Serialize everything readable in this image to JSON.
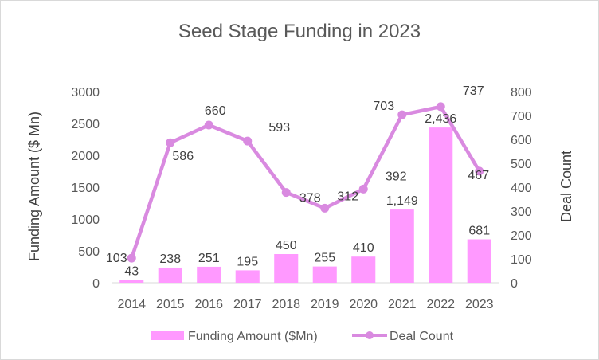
{
  "chart_data": {
    "type": "bar",
    "title": "Seed Stage Funding in 2023",
    "categories": [
      "2014",
      "2015",
      "2016",
      "2017",
      "2018",
      "2019",
      "2020",
      "2021",
      "2022",
      "2023"
    ],
    "series": [
      {
        "name": "Funding Amount ($Mn)",
        "type": "bar",
        "axis": "left",
        "values": [
          43,
          238,
          251,
          195,
          450,
          255,
          410,
          1149,
          2436,
          681
        ],
        "labels": [
          "43",
          "238",
          "251",
          "195",
          "450",
          "255",
          "410",
          "1,149",
          "2,436",
          "681"
        ],
        "color": "#ff99ff"
      },
      {
        "name": "Deal Count",
        "type": "line",
        "axis": "right",
        "values": [
          103,
          586,
          660,
          593,
          378,
          312,
          392,
          703,
          737,
          467
        ],
        "labels": [
          "103",
          "586",
          "660",
          "593",
          "378",
          "312",
          "392",
          "703",
          "737",
          "467"
        ],
        "color": "#d98ae0"
      }
    ],
    "ylabel": "Funding Amount ($ Mn)",
    "y2label": "Deal Count",
    "ylim": [
      0,
      3000
    ],
    "y2lim": [
      0,
      800
    ],
    "yticks": [
      "0",
      "500",
      "1000",
      "1500",
      "2000",
      "2500",
      "3000"
    ],
    "y2ticks": [
      "0",
      "100",
      "200",
      "300",
      "400",
      "500",
      "600",
      "700",
      "800"
    ],
    "legend_position": "bottom",
    "grid": false
  }
}
